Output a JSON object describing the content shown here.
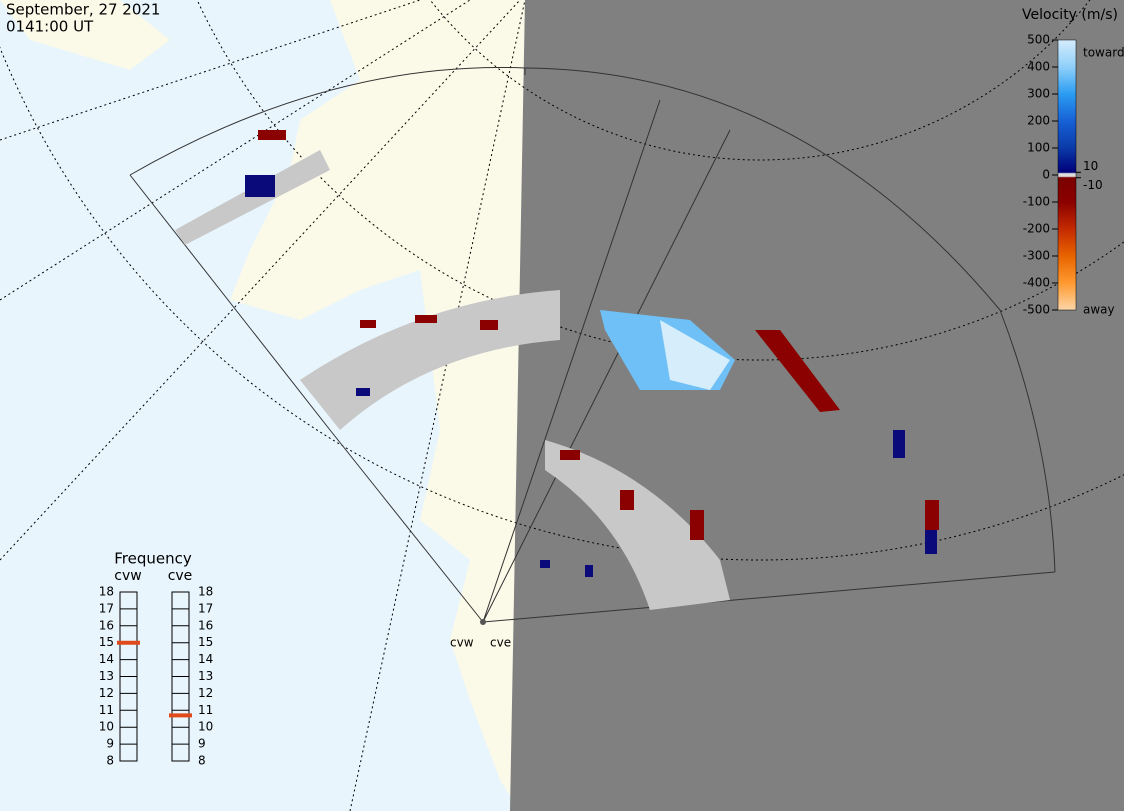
{
  "header": {
    "date": "September, 27 2021",
    "time": "0141:00 UT"
  },
  "velocity_scale": {
    "title": "Velocity (m/s)",
    "lim": [
      -500,
      500
    ],
    "ticks": [
      500,
      400,
      300,
      200,
      100,
      0,
      -100,
      -200,
      -300,
      -400,
      -500
    ],
    "minor_ticks": [
      10,
      -10
    ],
    "top_label": "toward",
    "bottom_label": "away"
  },
  "frequency": {
    "title": "Frequency",
    "lim": [
      8,
      18
    ],
    "ticks": [
      18,
      17,
      16,
      15,
      14,
      13,
      12,
      11,
      10,
      9,
      8
    ],
    "radars": [
      {
        "name": "cvw",
        "value": 15
      },
      {
        "name": "cve",
        "value": 10.7
      }
    ]
  },
  "map_labels": [
    "cvw",
    "cve"
  ]
}
